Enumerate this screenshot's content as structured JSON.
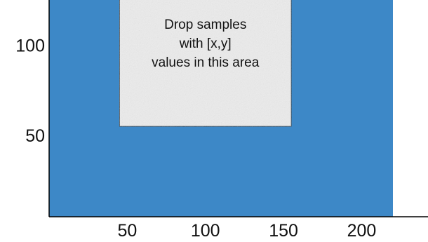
{
  "drop_zone": {
    "instruction_lines": [
      "Drop samples",
      "with [x,y]",
      "values in this area"
    ],
    "x_range": [
      45,
      155
    ],
    "y_range": [
      55,
      125
    ]
  },
  "plot": {
    "x_ticks": [
      50,
      100,
      150,
      200
    ],
    "y_ticks": [
      50,
      100
    ],
    "x_range_visible": [
      0,
      220
    ],
    "y_range_visible": [
      5,
      125
    ]
  },
  "colors": {
    "plot_background": "#3d88c7",
    "drop_zone_fill": "#ececec",
    "axis": "#000000",
    "text": "#111111"
  }
}
